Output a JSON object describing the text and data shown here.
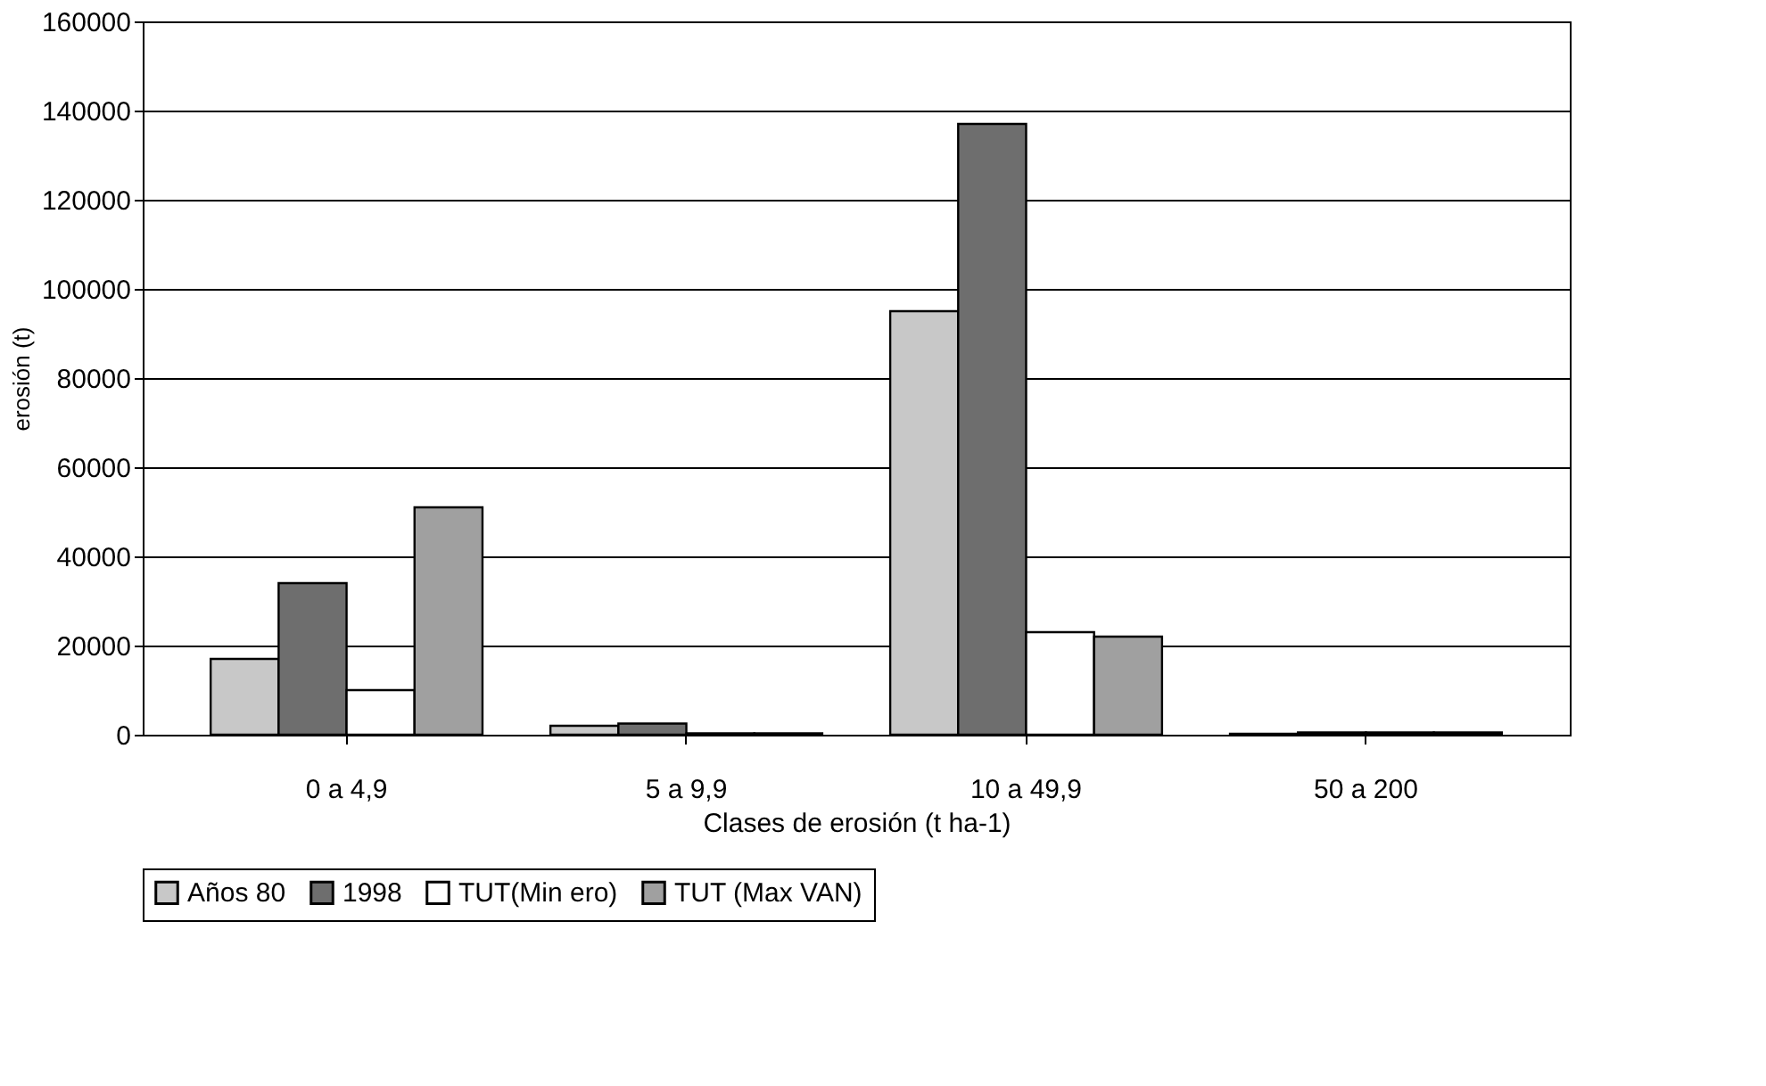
{
  "chart_data": {
    "type": "bar",
    "xlabel": "Clases de erosión (t ha-1)",
    "ylabel": "erosión (t)",
    "categories": [
      "0 a 4,9",
      "5 a 9,9",
      "10 a 49,9",
      "50 a 200"
    ],
    "series": [
      {
        "name": "Años 80",
        "color": "#c8c8c8",
        "values": [
          17000,
          2000,
          95000,
          200
        ]
      },
      {
        "name": "1998",
        "color": "#6e6e6e",
        "values": [
          34000,
          2500,
          137000,
          500
        ]
      },
      {
        "name": "TUT(Min ero)",
        "color": "#ffffff",
        "values": [
          10000,
          300,
          23000,
          500
        ]
      },
      {
        "name": "TUT (Max VAN)",
        "color": "#a0a0a0",
        "values": [
          51000,
          300,
          22000,
          500
        ]
      }
    ],
    "ylim": [
      0,
      160000
    ],
    "yticks": [
      0,
      20000,
      40000,
      60000,
      80000,
      100000,
      120000,
      140000,
      160000
    ],
    "grid": "y",
    "legend": "bottom"
  }
}
